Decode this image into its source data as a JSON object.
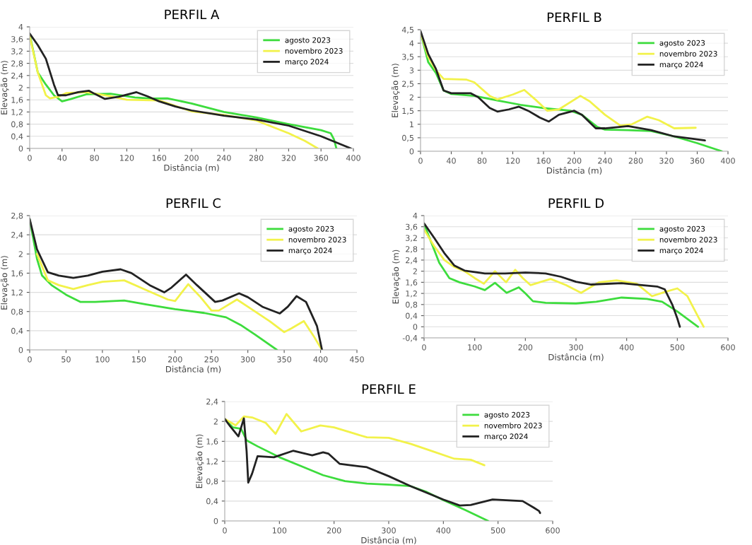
{
  "chart_data": [
    {
      "type": "line",
      "title": "PERFIL A",
      "xlabel": "Distância (m)",
      "ylabel": "Elevação (m)",
      "xlim": [
        0,
        400
      ],
      "xticks": [
        0,
        40,
        80,
        120,
        160,
        200,
        240,
        280,
        320,
        360,
        400
      ],
      "ylim": [
        0,
        4
      ],
      "yticks": [
        0,
        {
          "value": 0.4,
          "label": "0,4"
        },
        {
          "value": 0.8,
          "label": "0,8"
        },
        {
          "value": 1.2,
          "label": "1,2"
        },
        {
          "value": 1.6,
          "label": "1,6"
        },
        2,
        {
          "value": 2.4,
          "label": "2,4"
        },
        {
          "value": 2.8,
          "label": "2,8"
        },
        {
          "value": 3.2,
          "label": "3,2"
        },
        {
          "value": 3.6,
          "label": "3,6"
        },
        4
      ],
      "grid": "y",
      "legend": "top right",
      "series": [
        {
          "name": "agosto 2023",
          "color": "#3ddc3d",
          "x": [
            0,
            10,
            20,
            30,
            40,
            50,
            70,
            100,
            130,
            150,
            170,
            200,
            240,
            280,
            320,
            360,
            372,
            376,
            379
          ],
          "values": [
            3.76,
            2.5,
            2.1,
            1.75,
            1.55,
            1.62,
            1.78,
            1.8,
            1.68,
            1.64,
            1.65,
            1.48,
            1.2,
            1.02,
            0.8,
            0.6,
            0.5,
            0.3,
            0
          ]
        },
        {
          "name": "novembro 2023",
          "color": "#f2f24a",
          "x": [
            0,
            10,
            20,
            25,
            35,
            45,
            70,
            100,
            120,
            160,
            200,
            240,
            280,
            320,
            340,
            356
          ],
          "values": [
            3.7,
            2.5,
            1.75,
            1.65,
            1.7,
            1.82,
            1.85,
            1.72,
            1.6,
            1.58,
            1.22,
            1.1,
            0.92,
            0.5,
            0.25,
            0
          ]
        },
        {
          "name": "março 2024",
          "color": "#222222",
          "x": [
            0,
            10,
            20,
            30,
            35,
            45,
            60,
            73,
            80,
            93,
            110,
            132,
            145,
            160,
            180,
            200,
            240,
            280,
            320,
            360,
            397
          ],
          "values": [
            3.78,
            3.4,
            2.95,
            2.1,
            1.75,
            1.75,
            1.85,
            1.9,
            1.8,
            1.63,
            1.7,
            1.85,
            1.72,
            1.55,
            1.38,
            1.25,
            1.08,
            0.95,
            0.75,
            0.4,
            0
          ]
        }
      ]
    },
    {
      "type": "line",
      "title": "PERFIL B",
      "xlabel": "Distância (m)",
      "ylabel": "Elevação (m)",
      "xlim": [
        0,
        400
      ],
      "xticks": [
        0,
        40,
        80,
        120,
        160,
        200,
        240,
        280,
        320,
        360,
        400
      ],
      "ylim": [
        0,
        4.5
      ],
      "yticks": [
        0,
        {
          "value": 0.5,
          "label": "0,5"
        },
        1,
        {
          "value": 1.5,
          "label": "1,5"
        },
        2,
        {
          "value": 2.5,
          "label": "2,5"
        },
        3,
        {
          "value": 3.5,
          "label": "3,5"
        },
        4,
        {
          "value": 4.5,
          "label": "4,5"
        }
      ],
      "grid": "y",
      "legend": "top right",
      "series": [
        {
          "name": "agosto 2023",
          "color": "#3ddc3d",
          "x": [
            0,
            10,
            20,
            30,
            40,
            70,
            100,
            130,
            160,
            195,
            210,
            230,
            240,
            270,
            300,
            330,
            360,
            392
          ],
          "values": [
            4.4,
            3.3,
            2.9,
            2.25,
            2.12,
            2.05,
            1.88,
            1.72,
            1.6,
            1.5,
            1.35,
            0.9,
            0.8,
            0.78,
            0.75,
            0.55,
            0.3,
            0
          ]
        },
        {
          "name": "novembro 2023",
          "color": "#f2f24a",
          "x": [
            0,
            10,
            20,
            30,
            60,
            70,
            90,
            100,
            120,
            135,
            150,
            165,
            180,
            208,
            220,
            240,
            260,
            275,
            295,
            310,
            330,
            358
          ],
          "values": [
            4.4,
            3.5,
            3.0,
            2.68,
            2.65,
            2.55,
            2.05,
            1.92,
            2.1,
            2.27,
            1.9,
            1.5,
            1.55,
            2.05,
            1.85,
            1.35,
            0.95,
            1.0,
            1.28,
            1.15,
            0.85,
            0.87
          ]
        },
        {
          "name": "março 2024",
          "color": "#222222",
          "x": [
            0,
            10,
            20,
            30,
            40,
            65,
            75,
            90,
            100,
            115,
            128,
            140,
            155,
            167,
            180,
            200,
            210,
            228,
            240,
            270,
            300,
            330,
            370
          ],
          "values": [
            4.45,
            3.6,
            3.05,
            2.25,
            2.15,
            2.15,
            2.0,
            1.6,
            1.47,
            1.55,
            1.65,
            1.5,
            1.25,
            1.1,
            1.35,
            1.5,
            1.35,
            0.85,
            0.85,
            0.93,
            0.78,
            0.55,
            0.4
          ]
        }
      ]
    },
    {
      "type": "line",
      "title": "PERFIL C",
      "xlabel": "Distância (m)",
      "ylabel": "Elevação (m)",
      "xlim": [
        0,
        450
      ],
      "xticks": [
        0,
        50,
        100,
        150,
        200,
        250,
        300,
        350,
        400,
        450
      ],
      "ylim": [
        0,
        2.8
      ],
      "yticks": [
        0,
        {
          "value": 0.4,
          "label": "0,4"
        },
        {
          "value": 0.8,
          "label": "0,8"
        },
        {
          "value": 1.2,
          "label": "1,2"
        },
        {
          "value": 1.6,
          "label": "1,6"
        },
        2,
        {
          "value": 2.4,
          "label": "2,4"
        },
        {
          "value": 2.8,
          "label": "2,8"
        }
      ],
      "grid": "y",
      "legend": "top right",
      "series": [
        {
          "name": "agosto 2023",
          "color": "#3ddc3d",
          "x": [
            0,
            10,
            17,
            30,
            50,
            70,
            90,
            130,
            160,
            200,
            240,
            270,
            290,
            310,
            340
          ],
          "values": [
            2.72,
            1.9,
            1.55,
            1.35,
            1.15,
            1.0,
            1.0,
            1.03,
            0.95,
            0.85,
            0.77,
            0.68,
            0.52,
            0.32,
            0
          ]
        },
        {
          "name": "novembro 2023",
          "color": "#f2f24a",
          "x": [
            10,
            25,
            40,
            60,
            80,
            100,
            130,
            160,
            190,
            200,
            218,
            235,
            250,
            260,
            285,
            300,
            330,
            350,
            360,
            377,
            390,
            402
          ],
          "values": [
            2.0,
            1.45,
            1.35,
            1.27,
            1.35,
            1.42,
            1.45,
            1.25,
            1.05,
            1.02,
            1.37,
            1.1,
            0.82,
            0.82,
            1.05,
            0.9,
            0.6,
            0.37,
            0.45,
            0.6,
            0.3,
            0
          ]
        },
        {
          "name": "março 2024",
          "color": "#222222",
          "x": [
            0,
            10,
            25,
            40,
            60,
            80,
            100,
            125,
            140,
            165,
            185,
            195,
            215,
            230,
            255,
            265,
            288,
            300,
            320,
            344,
            355,
            367,
            380,
            395,
            402
          ],
          "values": [
            2.73,
            2.1,
            1.62,
            1.55,
            1.5,
            1.55,
            1.63,
            1.68,
            1.6,
            1.35,
            1.2,
            1.3,
            1.57,
            1.35,
            1.0,
            1.03,
            1.18,
            1.1,
            0.9,
            0.76,
            0.9,
            1.12,
            1.0,
            0.5,
            0
          ]
        }
      ]
    },
    {
      "type": "line",
      "title": "PERFIL D",
      "xlabel": "Distância (m)",
      "ylabel": "Elevação (m)",
      "xlim": [
        0,
        600
      ],
      "xticks": [
        0,
        100,
        200,
        300,
        400,
        500,
        600
      ],
      "ylim": [
        -0.4,
        4
      ],
      "yticks": [
        {
          "value": -0.4,
          "label": "-0,4"
        },
        0,
        {
          "value": 0.4,
          "label": "0,4"
        },
        {
          "value": 0.8,
          "label": "0,8"
        },
        {
          "value": 1.2,
          "label": "1,2"
        },
        {
          "value": 1.6,
          "label": "1,6"
        },
        2,
        {
          "value": 2.4,
          "label": "2,4"
        },
        {
          "value": 2.8,
          "label": "2,8"
        },
        {
          "value": 3.2,
          "label": "3,2"
        },
        {
          "value": 3.6,
          "label": "3,6"
        },
        4
      ],
      "grid": "y",
      "legend": "top right",
      "series": [
        {
          "name": "agosto 2023",
          "color": "#3ddc3d",
          "x": [
            0,
            15,
            30,
            50,
            70,
            100,
            120,
            140,
            163,
            187,
            200,
            215,
            240,
            300,
            340,
            390,
            440,
            470,
            500,
            541
          ],
          "values": [
            3.7,
            3.0,
            2.3,
            1.75,
            1.6,
            1.45,
            1.32,
            1.58,
            1.22,
            1.42,
            1.2,
            0.92,
            0.86,
            0.84,
            0.9,
            1.05,
            1.0,
            0.9,
            0.55,
            0
          ]
        },
        {
          "name": "novembro 2023",
          "color": "#f2f24a",
          "x": [
            0,
            20,
            40,
            60,
            80,
            100,
            118,
            140,
            162,
            180,
            195,
            210,
            250,
            280,
            310,
            345,
            380,
            420,
            450,
            475,
            500,
            520,
            540,
            552
          ],
          "values": [
            3.5,
            2.9,
            2.4,
            2.15,
            2.0,
            1.75,
            1.55,
            2.0,
            1.6,
            2.05,
            1.75,
            1.5,
            1.72,
            1.5,
            1.22,
            1.6,
            1.67,
            1.55,
            1.1,
            1.25,
            1.38,
            1.1,
            0.4,
            0
          ]
        },
        {
          "name": "março 2024",
          "color": "#222222",
          "x": [
            0,
            20,
            40,
            60,
            80,
            120,
            160,
            200,
            240,
            270,
            300,
            330,
            390,
            430,
            460,
            475,
            490,
            500,
            505
          ],
          "values": [
            3.72,
            3.2,
            2.65,
            2.2,
            2.02,
            1.92,
            1.92,
            1.95,
            1.92,
            1.8,
            1.62,
            1.52,
            1.57,
            1.5,
            1.45,
            1.35,
            0.8,
            0.3,
            0
          ]
        }
      ]
    },
    {
      "type": "line",
      "title": "PERFIL E",
      "xlabel": "Distância (m)",
      "ylabel": "Elevação (m)",
      "xlim": [
        0,
        600
      ],
      "xticks": [
        0,
        100,
        200,
        300,
        400,
        500,
        600
      ],
      "ylim": [
        0,
        2.4
      ],
      "yticks": [
        0,
        {
          "value": 0.4,
          "label": "0,4"
        },
        {
          "value": 0.8,
          "label": "0,8"
        },
        {
          "value": 1.2,
          "label": "1,2"
        },
        {
          "value": 1.6,
          "label": "1,6"
        },
        2,
        {
          "value": 2.4,
          "label": "2,4"
        }
      ],
      "grid": "y",
      "legend": "top right",
      "series": [
        {
          "name": "agosto 2023",
          "color": "#3ddc3d",
          "x": [
            0,
            15,
            30,
            40,
            60,
            100,
            140,
            180,
            220,
            260,
            300,
            340,
            370,
            400,
            440,
            482
          ],
          "values": [
            2.05,
            1.88,
            1.85,
            1.62,
            1.5,
            1.28,
            1.1,
            0.92,
            0.8,
            0.75,
            0.73,
            0.7,
            0.58,
            0.42,
            0.22,
            0
          ]
        },
        {
          "name": "novembro 2023",
          "color": "#f2f24a",
          "x": [
            0,
            20,
            35,
            50,
            75,
            93,
            113,
            140,
            175,
            200,
            230,
            260,
            300,
            340,
            380,
            420,
            450,
            475
          ],
          "values": [
            2.05,
            1.92,
            2.1,
            2.08,
            1.97,
            1.75,
            2.15,
            1.8,
            1.92,
            1.88,
            1.78,
            1.68,
            1.67,
            1.55,
            1.4,
            1.25,
            1.23,
            1.12
          ]
        },
        {
          "name": "março 2024",
          "color": "#222222",
          "x": [
            0,
            10,
            25,
            35,
            40,
            43,
            50,
            60,
            90,
            125,
            160,
            180,
            190,
            210,
            230,
            260,
            300,
            340,
            400,
            430,
            450,
            490,
            545,
            565,
            575,
            577
          ],
          "values": [
            2.05,
            1.9,
            1.7,
            2.06,
            1.4,
            0.77,
            0.95,
            1.3,
            1.28,
            1.41,
            1.32,
            1.38,
            1.35,
            1.15,
            1.12,
            1.08,
            0.9,
            0.7,
            0.43,
            0.31,
            0.32,
            0.43,
            0.4,
            0.27,
            0.2,
            0.16
          ]
        }
      ]
    }
  ]
}
